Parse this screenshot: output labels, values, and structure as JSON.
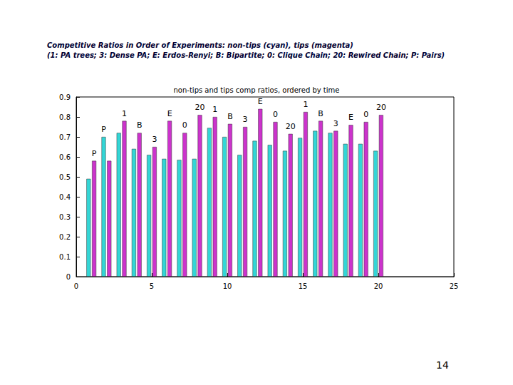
{
  "chart_data": {
    "type": "bar",
    "title": "non-tips and tips comp ratios, ordered by time",
    "annotations": [
      "Competitive Ratios in Order of Experiments: non-tips (cyan), tips (magenta)",
      "(1: PA trees; 3: Dense PA; E: Erdos-Renyi; B: Bipartite; 0: Clique Chain; 20: Rewired Chain; P: Pairs)",
      "14"
    ],
    "x": [
      1,
      2,
      3,
      4,
      5,
      6,
      7,
      8,
      9,
      10,
      11,
      12,
      13,
      14,
      15,
      16,
      17,
      18,
      19,
      20
    ],
    "bar_labels": [
      "P",
      "P",
      "1",
      "B",
      "3",
      "E",
      "0",
      "20",
      "1",
      "B",
      "3",
      "E",
      "0",
      "20",
      "1",
      "B",
      "3",
      "E",
      "0",
      "20"
    ],
    "series": [
      {
        "color": "#33d6d6",
        "values": [
          0.49,
          0.7,
          0.72,
          0.64,
          0.61,
          0.59,
          0.585,
          0.59,
          0.745,
          0.7,
          0.61,
          0.68,
          0.66,
          0.63,
          0.695,
          0.73,
          0.72,
          0.665,
          0.665,
          0.63
        ]
      },
      {
        "color": "#cc33cc",
        "values": [
          0.58,
          0.58,
          0.78,
          0.72,
          0.65,
          0.78,
          0.72,
          0.81,
          0.8,
          0.765,
          0.75,
          0.84,
          0.775,
          0.715,
          0.825,
          0.78,
          0.73,
          0.76,
          0.775,
          0.81
        ]
      }
    ],
    "xlim": [
      0,
      25
    ],
    "xticks": [
      0,
      5,
      10,
      15,
      20,
      25
    ],
    "ylim": [
      0,
      0.9
    ],
    "yticks": [
      0,
      0.1,
      0.2,
      0.3,
      0.4,
      0.5,
      0.6,
      0.7,
      0.8,
      0.9
    ],
    "grid": false
  }
}
